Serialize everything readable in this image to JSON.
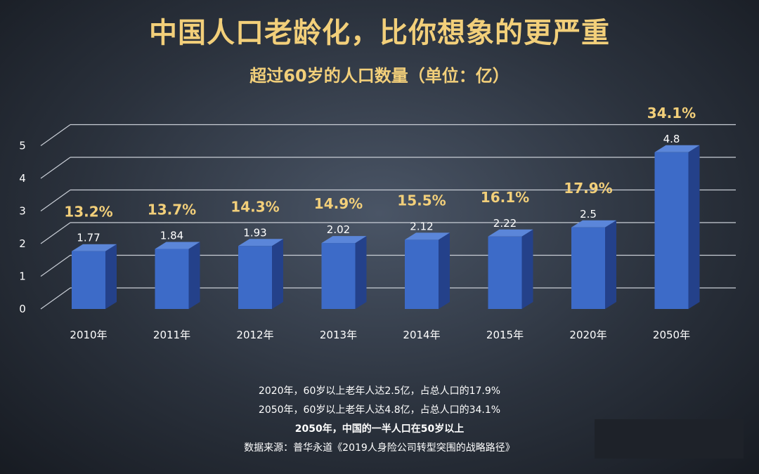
{
  "title": "中国人口老龄化，比你想象的更严重",
  "chart_data": {
    "type": "bar",
    "title": "超过60岁的人口数量（单位：亿）",
    "categories": [
      "2010年",
      "2011年",
      "2012年",
      "2013年",
      "2014年",
      "2015年",
      "2020年",
      "2050年"
    ],
    "values": [
      1.77,
      1.84,
      1.93,
      2.02,
      2.12,
      2.22,
      2.5,
      4.8
    ],
    "value_labels": [
      "1.77",
      "1.84",
      "1.93",
      "2.02",
      "2.12",
      "2.22",
      "2.5",
      "4.8"
    ],
    "percent_labels": [
      "13.2%",
      "13.7%",
      "14.3%",
      "14.9%",
      "15.5%",
      "16.1%",
      "17.9%",
      "34.1%"
    ],
    "percent_values": [
      13.2,
      13.7,
      14.3,
      14.9,
      15.5,
      16.1,
      17.9,
      34.1
    ],
    "yticks": [
      "0",
      "1",
      "2",
      "3",
      "4",
      "5"
    ],
    "ylim": [
      0,
      5
    ],
    "grid": true,
    "bar_color": "#3d6bc8",
    "percent_color": "#f2cf7a"
  },
  "notes": [
    "2020年，60岁以上老年人达2.5亿，占总人口的17.9%",
    "2050年，60岁以上老年人达4.8亿，占总人口的34.1%",
    "2050年，中国的一半人口在50岁以上",
    "数据来源：普华永道《2019人身险公司转型突围的战略路径》"
  ]
}
